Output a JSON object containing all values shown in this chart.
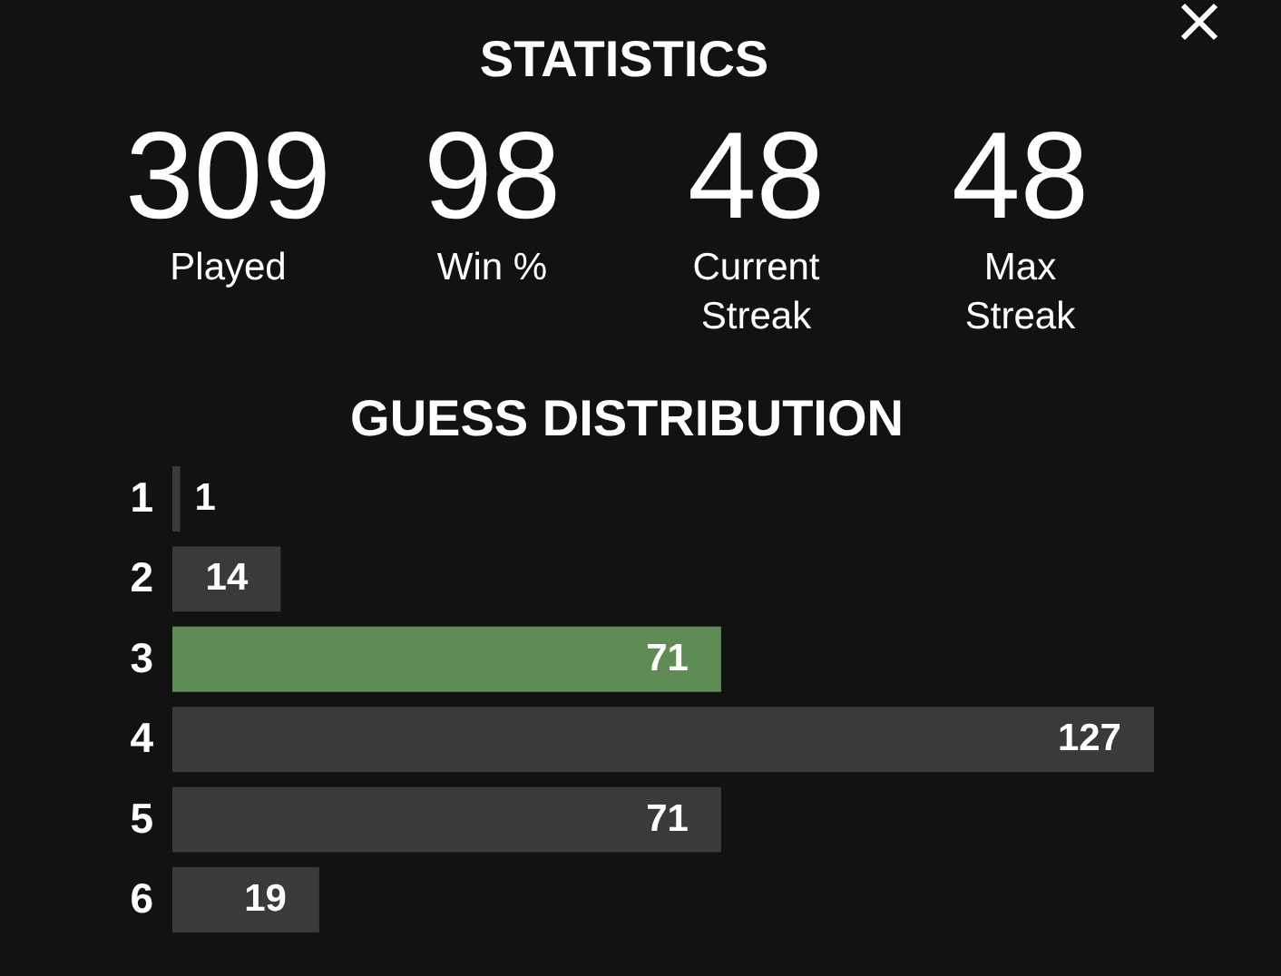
{
  "chart_data": [
    {
      "type": "other",
      "title": "STATISTICS",
      "categories": [
        "Played",
        "Win %",
        "Current Streak",
        "Max Streak"
      ],
      "values": [
        309,
        98,
        48,
        48
      ],
      "data_labels": true
    },
    {
      "type": "bar",
      "orientation": "horizontal",
      "title": "GUESS DISTRIBUTION",
      "categories": [
        "1",
        "2",
        "3",
        "4",
        "5",
        "6"
      ],
      "values": [
        1,
        14,
        71,
        127,
        71,
        19
      ],
      "colors": [
        "#3a3a3c",
        "#3a3a3c",
        "#5f8c55",
        "#3a3a3c",
        "#3a3a3c",
        "#3a3a3c"
      ],
      "data_labels": true
    }
  ]
}
